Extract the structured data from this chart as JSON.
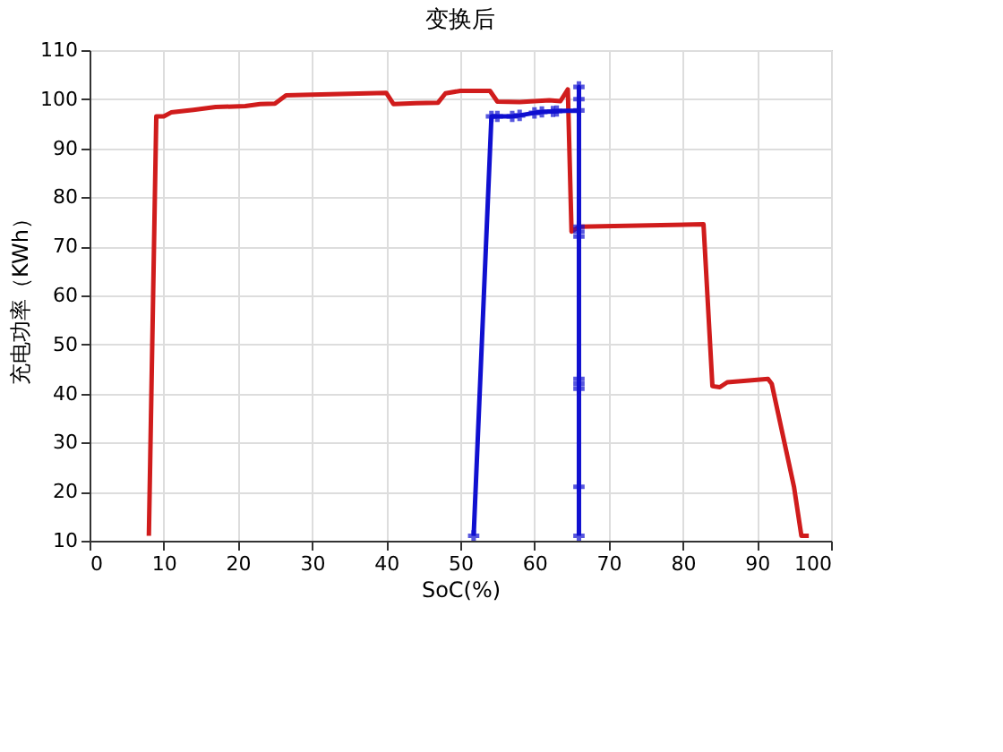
{
  "chart_data": {
    "type": "line",
    "title": "变换后",
    "xlabel": "SoC(%)",
    "ylabel": "充电功率（KWh）",
    "xlim": [
      0,
      100
    ],
    "xticks": [
      0,
      10,
      20,
      30,
      40,
      50,
      60,
      70,
      80,
      90,
      100
    ],
    "ylim": [
      10,
      110
    ],
    "yticks": [
      10,
      20,
      30,
      40,
      50,
      60,
      70,
      80,
      90,
      100,
      110
    ],
    "grid": true,
    "series": [
      {
        "color": "#d01c1c",
        "marker": "none",
        "x": [
          8,
          9,
          10,
          11,
          14,
          17,
          21,
          23,
          25,
          26.5,
          30,
          35,
          40,
          41,
          44,
          47,
          48,
          50,
          54,
          55,
          58,
          62,
          63.5,
          64.5,
          65,
          66,
          82.8,
          84,
          85,
          86,
          91.5,
          92,
          95,
          96,
          97
        ],
        "values": [
          11,
          96.5,
          96.5,
          97.3,
          97.8,
          98.4,
          98.6,
          99,
          99.1,
          100.8,
          100.9,
          101.1,
          101.3,
          99,
          99.2,
          99.3,
          101.2,
          101.7,
          101.7,
          99.5,
          99.4,
          99.8,
          99.6,
          102,
          73,
          74,
          74.5,
          41.5,
          41.3,
          42.3,
          43,
          42,
          21,
          11,
          11
        ]
      },
      {
        "color": "#1010d0",
        "marker": "cross",
        "x": [
          51.8,
          54.2,
          55,
          57,
          58,
          60,
          61,
          62.5,
          63,
          66,
          66,
          66,
          66,
          66,
          66,
          66,
          66,
          66,
          66,
          66
        ],
        "values": [
          11,
          96.5,
          96.5,
          96.5,
          96.7,
          97.2,
          97.4,
          97.5,
          97.6,
          97.7,
          102.5,
          100,
          74,
          73,
          72,
          43,
          42,
          41,
          21,
          11
        ]
      }
    ]
  }
}
